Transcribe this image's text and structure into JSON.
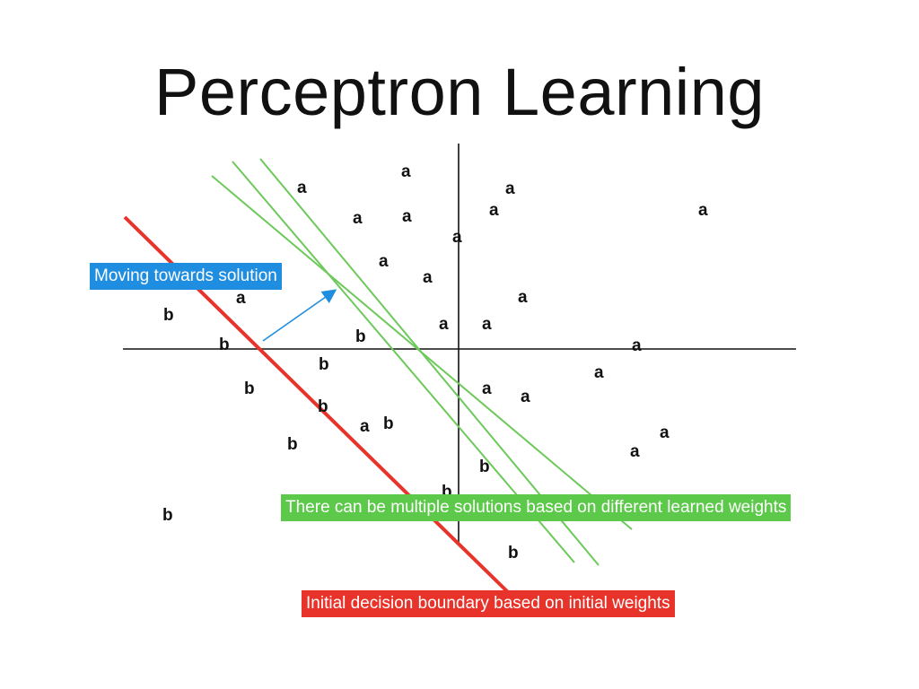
{
  "title": "Perceptron Learning",
  "colors": {
    "axis": "#111111",
    "initial_boundary": "#e8332a",
    "learned_boundaries": "#6cc95a",
    "arrow": "#1f8de0",
    "callout_moving_bg": "#1f8de0",
    "callout_multiple_bg": "#5dc94a",
    "callout_initial_bg": "#e8332a"
  },
  "callouts": {
    "moving": "Moving towards solution",
    "multiple": "There can be multiple solutions based on different learned weights",
    "initial": "Initial decision boundary based on initial weights"
  },
  "classes": {
    "positive_label": "a",
    "negative_label": "b",
    "positive_count": 26,
    "negative_count": 15
  }
}
